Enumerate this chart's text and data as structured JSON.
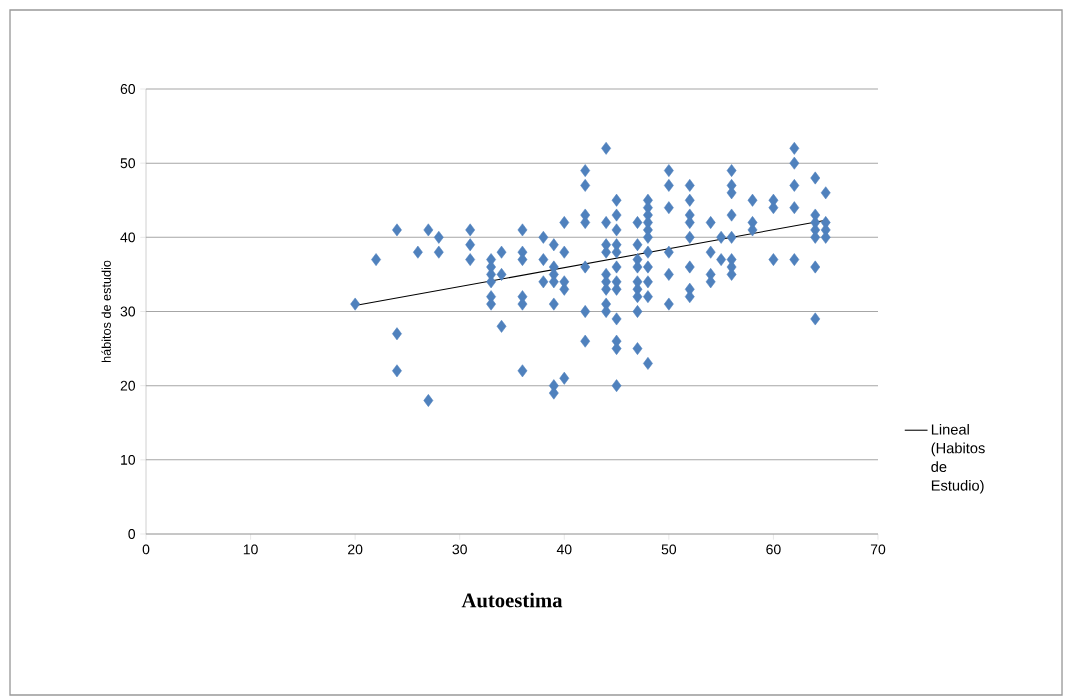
{
  "chart_data": {
    "type": "scatter",
    "xlabel": "Autoestima",
    "ylabel": "hábitos de estudio",
    "xlim": [
      0,
      70
    ],
    "xticks": [
      0,
      10,
      20,
      30,
      40,
      50,
      60,
      70
    ],
    "ylim": [
      0,
      60
    ],
    "yticks": [
      0,
      10,
      20,
      30,
      40,
      50,
      60
    ],
    "grid": "y",
    "legend": "right",
    "marker": "diamond",
    "series": [
      {
        "color": "#4f81bd",
        "x": [
          20,
          22,
          24,
          24,
          24,
          26,
          27,
          27,
          28,
          28,
          31,
          31,
          31,
          33,
          33,
          33,
          33,
          33,
          33,
          34,
          34,
          34,
          36,
          36,
          36,
          36,
          36,
          36,
          38,
          38,
          38,
          39,
          39,
          39,
          39,
          39,
          39,
          39,
          40,
          40,
          40,
          40,
          40,
          42,
          42,
          42,
          42,
          42,
          42,
          42,
          44,
          44,
          44,
          44,
          44,
          44,
          44,
          44,
          44,
          45,
          45,
          45,
          45,
          45,
          45,
          45,
          45,
          45,
          45,
          45,
          45,
          47,
          47,
          47,
          47,
          47,
          47,
          47,
          47,
          47,
          48,
          48,
          48,
          48,
          48,
          48,
          48,
          48,
          48,
          48,
          48,
          50,
          50,
          50,
          50,
          50,
          50,
          52,
          52,
          52,
          52,
          52,
          52,
          52,
          52,
          54,
          54,
          54,
          54,
          55,
          55,
          56,
          56,
          56,
          56,
          56,
          56,
          56,
          56,
          58,
          58,
          58,
          60,
          60,
          60,
          62,
          62,
          62,
          62,
          62,
          64,
          64,
          64,
          64,
          64,
          64,
          64,
          65,
          65,
          65,
          65
        ],
        "values": [
          31,
          37,
          41,
          27,
          22,
          38,
          41,
          18,
          40,
          38,
          41,
          39,
          37,
          37,
          36,
          35,
          34,
          32,
          31,
          38,
          35,
          28,
          41,
          38,
          37,
          32,
          31,
          22,
          40,
          37,
          34,
          39,
          36,
          35,
          34,
          31,
          20,
          19,
          42,
          38,
          34,
          33,
          21,
          49,
          47,
          43,
          42,
          36,
          30,
          26,
          52,
          42,
          39,
          38,
          35,
          34,
          33,
          31,
          30,
          45,
          43,
          41,
          39,
          38,
          36,
          34,
          33,
          29,
          26,
          25,
          20,
          42,
          39,
          37,
          36,
          34,
          33,
          32,
          30,
          25,
          45,
          44,
          43,
          42,
          41,
          40,
          38,
          36,
          34,
          32,
          23,
          49,
          47,
          44,
          38,
          35,
          31,
          47,
          45,
          43,
          42,
          40,
          36,
          33,
          32,
          42,
          38,
          35,
          34,
          40,
          37,
          49,
          47,
          46,
          43,
          40,
          37,
          36,
          35,
          45,
          42,
          41,
          45,
          44,
          37,
          52,
          50,
          47,
          44,
          37,
          48,
          43,
          42,
          41,
          40,
          36,
          29,
          46,
          42,
          41,
          40
        ]
      },
      {
        "type": "line",
        "name": "Lineal (Habitos de Estudio)",
        "color": "#000000",
        "marker": "none",
        "x": [
          20,
          65
        ],
        "values": [
          30.8,
          42.3
        ]
      }
    ]
  }
}
